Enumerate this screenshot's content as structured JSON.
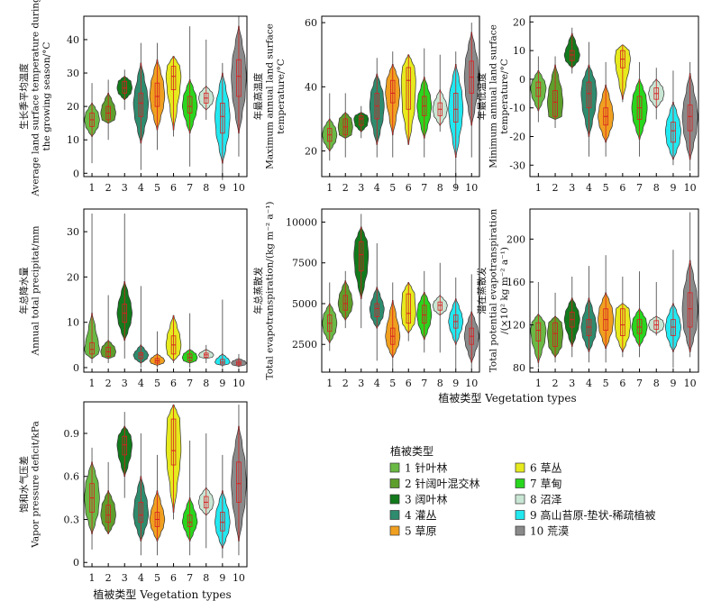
{
  "figure": {
    "x_categories": [
      "1",
      "2",
      "3",
      "4",
      "5",
      "6",
      "7",
      "8",
      "9",
      "10"
    ],
    "xlabel": "植被类型  Vegetation types",
    "legend_title": "植被类型",
    "legend": [
      {
        "label": "1 针叶林",
        "color": "#6ab945"
      },
      {
        "label": "2 针阔叶混交林",
        "color": "#5e9e2c"
      },
      {
        "label": "3 阔叶林",
        "color": "#127a1c"
      },
      {
        "label": "4 灌丛",
        "color": "#2e8b6e"
      },
      {
        "label": "5 草原",
        "color": "#f0a020"
      },
      {
        "label": "6 草丛",
        "color": "#e6ea1e"
      },
      {
        "label": "7 草甸",
        "color": "#29d61e"
      },
      {
        "label": "8 沼泽",
        "color": "#c9e6d4"
      },
      {
        "label": "9 高山苔原-垫状-稀疏植被",
        "color": "#22e8f0"
      },
      {
        "label": "10 荒漠",
        "color": "#8a8a8a"
      }
    ]
  },
  "chart_data": [
    {
      "type": "violin",
      "ylabel": [
        "生长季平均温度",
        "Average land surface temperature during",
        "the growing season/°C"
      ],
      "yticks": [
        0,
        10,
        20,
        30,
        40
      ],
      "ylim": [
        -1,
        47
      ],
      "series": [
        {
          "category": "1",
          "min": 3,
          "q1": 14,
          "median": 16,
          "q3": 18,
          "max": 27,
          "lo": 11,
          "hi": 21
        },
        {
          "category": "2",
          "min": 10,
          "q1": 16,
          "median": 18,
          "q3": 20,
          "max": 28,
          "lo": 15,
          "hi": 24
        },
        {
          "category": "3",
          "min": 19,
          "q1": 24,
          "median": 25.5,
          "q3": 27.5,
          "max": 31,
          "lo": 22,
          "hi": 29
        },
        {
          "category": "4",
          "min": 1,
          "q1": 17,
          "median": 21,
          "q3": 24,
          "max": 39,
          "lo": 9,
          "hi": 33
        },
        {
          "category": "5",
          "min": 7,
          "q1": 20,
          "median": 23,
          "q3": 27,
          "max": 39,
          "lo": 13,
          "hi": 34
        },
        {
          "category": "6",
          "min": 11,
          "q1": 25,
          "median": 29,
          "q3": 32,
          "max": 35,
          "lo": 13,
          "hi": 35
        },
        {
          "category": "7",
          "min": 2,
          "q1": 18,
          "median": 20,
          "q3": 23,
          "max": 44,
          "lo": 12,
          "hi": 28
        },
        {
          "category": "8",
          "min": 16,
          "q1": 21,
          "median": 22.5,
          "q3": 24,
          "max": 40,
          "lo": 19,
          "hi": 26
        },
        {
          "category": "9",
          "min": -2,
          "q1": 12,
          "median": 17,
          "q3": 21,
          "max": 33,
          "lo": 3,
          "hi": 30
        },
        {
          "category": "10",
          "min": 5,
          "q1": 23,
          "median": 29,
          "q3": 34,
          "max": 47,
          "lo": 12,
          "hi": 44
        }
      ]
    },
    {
      "type": "violin",
      "ylabel": [
        "年最高温度",
        "Maximum annual land surface",
        "temperature/°C"
      ],
      "yticks": [
        20,
        40,
        60
      ],
      "ylim": [
        12,
        62
      ],
      "series": [
        {
          "category": "1",
          "min": 17,
          "q1": 23,
          "median": 25,
          "q3": 27,
          "max": 38,
          "lo": 20,
          "hi": 30
        },
        {
          "category": "2",
          "min": 18,
          "q1": 25,
          "median": 27.5,
          "q3": 30,
          "max": 38,
          "lo": 24,
          "hi": 32
        },
        {
          "category": "3",
          "min": 24,
          "q1": 28,
          "median": 30,
          "q3": 31,
          "max": 34,
          "lo": 26,
          "hi": 32
        },
        {
          "category": "4",
          "min": 18,
          "q1": 30,
          "median": 34,
          "q3": 38,
          "max": 49,
          "lo": 22,
          "hi": 44
        },
        {
          "category": "5",
          "min": 18,
          "q1": 35,
          "median": 38,
          "q3": 42,
          "max": 51,
          "lo": 25,
          "hi": 47
        },
        {
          "category": "6",
          "min": 22,
          "q1": 33,
          "median": 42,
          "q3": 46,
          "max": 50,
          "lo": 22,
          "hi": 50
        },
        {
          "category": "7",
          "min": 18,
          "q1": 31,
          "median": 34,
          "q3": 37,
          "max": 52,
          "lo": 24,
          "hi": 43
        },
        {
          "category": "8",
          "min": 26,
          "q1": 31,
          "median": 33,
          "q3": 35,
          "max": 50,
          "lo": 28,
          "hi": 39
        },
        {
          "category": "9",
          "min": 8,
          "q1": 29,
          "median": 33,
          "q3": 38,
          "max": 51,
          "lo": 18,
          "hi": 47
        },
        {
          "category": "10",
          "min": 18,
          "q1": 38,
          "median": 43,
          "q3": 48,
          "max": 60,
          "lo": 28,
          "hi": 57
        }
      ]
    },
    {
      "type": "violin",
      "ylabel": [
        "年最低温度",
        "Minimum annual land surface",
        "temperature/°C"
      ],
      "yticks": [
        -30,
        -20,
        -10,
        0,
        10,
        20
      ],
      "ylim": [
        -34,
        22
      ],
      "series": [
        {
          "category": "1",
          "min": -15,
          "q1": -6,
          "median": -3,
          "q3": -1,
          "max": 8,
          "lo": -11,
          "hi": 3
        },
        {
          "category": "2",
          "min": -17,
          "q1": -13,
          "median": -8,
          "q3": -4,
          "max": 8,
          "lo": -14,
          "hi": 5
        },
        {
          "category": "3",
          "min": 2,
          "q1": 6.5,
          "median": 8.5,
          "q3": 10,
          "max": 18,
          "lo": 4,
          "hi": 16
        },
        {
          "category": "4",
          "min": -27,
          "q1": -10,
          "median": -5,
          "q3": -1,
          "max": 13,
          "lo": -20,
          "hi": 5
        },
        {
          "category": "5",
          "min": -27,
          "q1": -16,
          "median": -13,
          "q3": -10,
          "max": 6,
          "lo": -22,
          "hi": -2
        },
        {
          "category": "6",
          "min": -8,
          "q1": 4,
          "median": 7,
          "q3": 10,
          "max": 12,
          "lo": -7,
          "hi": 12
        },
        {
          "category": "7",
          "min": -27,
          "q1": -14,
          "median": -10,
          "q3": -6,
          "max": 6,
          "lo": -21,
          "hi": 0
        },
        {
          "category": "8",
          "min": -14,
          "q1": -7,
          "median": -5,
          "q3": -3,
          "max": 4,
          "lo": -10,
          "hi": 0
        },
        {
          "category": "9",
          "min": -30,
          "q1": -22,
          "median": -18,
          "q3": -15,
          "max": 3,
          "lo": -28,
          "hi": -8
        },
        {
          "category": "10",
          "min": -32,
          "q1": -18,
          "median": -13,
          "q3": -9,
          "max": 6,
          "lo": -28,
          "hi": 2
        }
      ]
    },
    {
      "type": "violin",
      "ylabel": [
        "年总降水量",
        "Annual total precipitat/mm"
      ],
      "yticks": [
        0,
        10,
        20,
        30
      ],
      "ylim": [
        -1,
        35
      ],
      "series": [
        {
          "category": "1",
          "min": 1,
          "q1": 3,
          "median": 4,
          "q3": 5.5,
          "max": 34,
          "lo": 2,
          "hi": 12
        },
        {
          "category": "2",
          "min": 1,
          "q1": 2.5,
          "median": 3.5,
          "q3": 4.5,
          "max": 16,
          "lo": 2,
          "hi": 6
        },
        {
          "category": "3",
          "min": 2,
          "q1": 10,
          "median": 12,
          "q3": 14,
          "max": 34,
          "lo": 6,
          "hi": 19
        },
        {
          "category": "4",
          "min": 0,
          "q1": 2,
          "median": 2.8,
          "q3": 3.3,
          "max": 18,
          "lo": 1,
          "hi": 5
        },
        {
          "category": "5",
          "min": 0,
          "q1": 1,
          "median": 1.5,
          "q3": 2,
          "max": 8,
          "lo": 0.5,
          "hi": 3
        },
        {
          "category": "6",
          "min": 1,
          "q1": 3,
          "median": 5,
          "q3": 7,
          "max": 11,
          "lo": 1.5,
          "hi": 11.5
        },
        {
          "category": "7",
          "min": 0,
          "q1": 1.5,
          "median": 2.2,
          "q3": 3,
          "max": 12,
          "lo": 1,
          "hi": 4
        },
        {
          "category": "8",
          "min": 1,
          "q1": 2.3,
          "median": 2.8,
          "q3": 3.2,
          "max": 5,
          "lo": 2,
          "hi": 4
        },
        {
          "category": "9",
          "min": 0,
          "q1": 0.8,
          "median": 1.2,
          "q3": 1.8,
          "max": 15,
          "lo": 0.5,
          "hi": 3
        },
        {
          "category": "10",
          "min": 0,
          "q1": 0.6,
          "median": 1,
          "q3": 1.4,
          "max": 3,
          "lo": 0.3,
          "hi": 2
        }
      ]
    },
    {
      "type": "violin",
      "ylabel": [
        "年总蒸散发",
        "Total evapotranspiration/(kg m⁻² a⁻¹)"
      ],
      "yticks": [
        2500,
        5000,
        7500,
        10000
      ],
      "ylim": [
        800,
        10800
      ],
      "series": [
        {
          "category": "1",
          "min": 2100,
          "q1": 3300,
          "median": 3800,
          "q3": 4300,
          "max": 6300,
          "lo": 2600,
          "hi": 5000
        },
        {
          "category": "2",
          "min": 3500,
          "q1": 4600,
          "median": 5000,
          "q3": 5500,
          "max": 7000,
          "lo": 4000,
          "hi": 6400
        },
        {
          "category": "3",
          "min": 3500,
          "q1": 7000,
          "median": 8000,
          "q3": 8800,
          "max": 10500,
          "lo": 5300,
          "hi": 9700
        },
        {
          "category": "4",
          "min": 1500,
          "q1": 4200,
          "median": 4700,
          "q3": 5000,
          "max": 8700,
          "lo": 3500,
          "hi": 6000
        },
        {
          "category": "5",
          "min": 1000,
          "q1": 2500,
          "median": 3000,
          "q3": 3500,
          "max": 6300,
          "lo": 1700,
          "hi": 5200
        },
        {
          "category": "6",
          "min": 2700,
          "q1": 3800,
          "median": 4400,
          "q3": 5600,
          "max": 6300,
          "lo": 3200,
          "hi": 6300
        },
        {
          "category": "7",
          "min": 2000,
          "q1": 3800,
          "median": 4300,
          "q3": 4900,
          "max": 7000,
          "lo": 2800,
          "hi": 5700
        },
        {
          "category": "8",
          "min": 2000,
          "q1": 4600,
          "median": 4900,
          "q3": 5100,
          "max": 7500,
          "lo": 4300,
          "hi": 5500
        },
        {
          "category": "9",
          "min": 1000,
          "q1": 3500,
          "median": 3900,
          "q3": 4300,
          "max": 6600,
          "lo": 2500,
          "hi": 5300
        },
        {
          "category": "10",
          "min": 1000,
          "q1": 2500,
          "median": 3000,
          "q3": 3500,
          "max": 6800,
          "lo": 1400,
          "hi": 4500
        }
      ]
    },
    {
      "type": "violin",
      "ylabel": [
        "潜在蒸散发",
        "Total potential evapotranspiration",
        "/(×10² kg m⁻² a⁻¹)"
      ],
      "yticks": [
        80,
        120,
        160,
        200
      ],
      "ylim": [
        76,
        228
      ],
      "series": [
        {
          "category": "1",
          "min": 80,
          "q1": 105,
          "median": 115,
          "q3": 122,
          "max": 160,
          "lo": 85,
          "hi": 130
        },
        {
          "category": "2",
          "min": 85,
          "q1": 100,
          "median": 112,
          "q3": 122,
          "max": 150,
          "lo": 90,
          "hi": 128
        },
        {
          "category": "3",
          "min": 90,
          "q1": 118,
          "median": 125,
          "q3": 132,
          "max": 165,
          "lo": 100,
          "hi": 145
        },
        {
          "category": "4",
          "min": 85,
          "q1": 110,
          "median": 118,
          "q3": 125,
          "max": 175,
          "lo": 95,
          "hi": 145
        },
        {
          "category": "5",
          "min": 85,
          "q1": 115,
          "median": 125,
          "q3": 135,
          "max": 185,
          "lo": 98,
          "hi": 150
        },
        {
          "category": "6",
          "min": 90,
          "q1": 110,
          "median": 120,
          "q3": 135,
          "max": 165,
          "lo": 95,
          "hi": 140
        },
        {
          "category": "7",
          "min": 90,
          "q1": 112,
          "median": 118,
          "q3": 125,
          "max": 170,
          "lo": 100,
          "hi": 135
        },
        {
          "category": "8",
          "min": 110,
          "q1": 116,
          "median": 120,
          "q3": 124,
          "max": 160,
          "lo": 112,
          "hi": 128
        },
        {
          "category": "9",
          "min": 80,
          "q1": 110,
          "median": 118,
          "q3": 125,
          "max": 190,
          "lo": 95,
          "hi": 140
        },
        {
          "category": "10",
          "min": 90,
          "q1": 118,
          "median": 135,
          "q3": 150,
          "max": 225,
          "lo": 95,
          "hi": 180
        }
      ]
    },
    {
      "type": "violin",
      "ylabel": [
        "饱和水气压差",
        "Vapor pressure deficit/kPa"
      ],
      "yticks": [
        0,
        0.3,
        0.6,
        0.9
      ],
      "ylim": [
        -0.03,
        1.12
      ],
      "series": [
        {
          "category": "1",
          "min": 0.09,
          "q1": 0.35,
          "median": 0.45,
          "q3": 0.55,
          "max": 0.8,
          "lo": 0.2,
          "hi": 0.7
        },
        {
          "category": "2",
          "min": 0.2,
          "q1": 0.28,
          "median": 0.33,
          "q3": 0.4,
          "max": 0.7,
          "lo": 0.2,
          "hi": 0.5
        },
        {
          "category": "3",
          "min": 0.45,
          "q1": 0.75,
          "median": 0.82,
          "q3": 0.88,
          "max": 1.05,
          "lo": 0.6,
          "hi": 0.95
        },
        {
          "category": "4",
          "min": 0.05,
          "q1": 0.28,
          "median": 0.33,
          "q3": 0.42,
          "max": 0.9,
          "lo": 0.15,
          "hi": 0.6
        },
        {
          "category": "5",
          "min": 0.05,
          "q1": 0.25,
          "median": 0.3,
          "q3": 0.35,
          "max": 0.75,
          "lo": 0.15,
          "hi": 0.5
        },
        {
          "category": "6",
          "min": 0.3,
          "q1": 0.68,
          "median": 0.78,
          "q3": 1.0,
          "max": 1.1,
          "lo": 0.35,
          "hi": 1.1
        },
        {
          "category": "7",
          "min": 0.05,
          "q1": 0.25,
          "median": 0.28,
          "q3": 0.33,
          "max": 0.85,
          "lo": 0.15,
          "hi": 0.45
        },
        {
          "category": "8",
          "min": 0.1,
          "q1": 0.38,
          "median": 0.42,
          "q3": 0.46,
          "max": 0.9,
          "lo": 0.33,
          "hi": 0.52
        },
        {
          "category": "9",
          "min": 0.03,
          "q1": 0.22,
          "median": 0.28,
          "q3": 0.35,
          "max": 0.75,
          "lo": 0.1,
          "hi": 0.5
        },
        {
          "category": "10",
          "min": 0.05,
          "q1": 0.42,
          "median": 0.55,
          "q3": 0.7,
          "max": 1.1,
          "lo": 0.15,
          "hi": 0.95
        }
      ]
    }
  ]
}
